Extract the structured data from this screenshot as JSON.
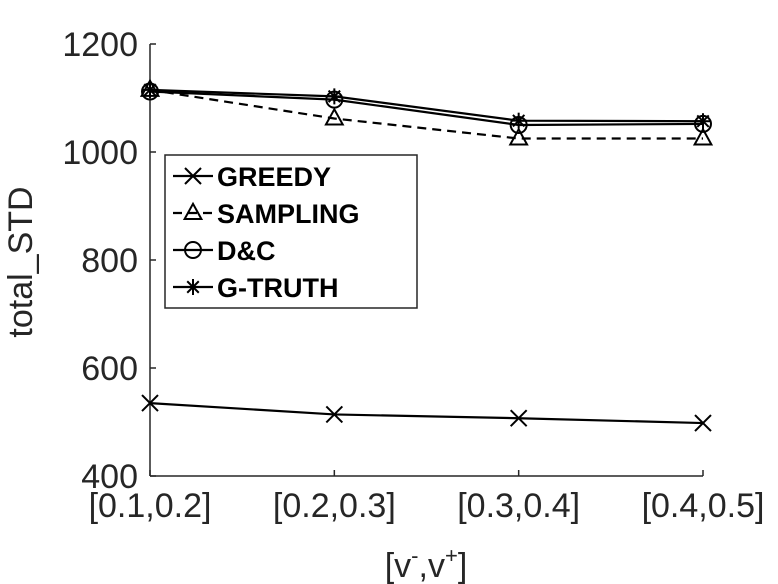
{
  "chart_data": {
    "type": "line",
    "categories": [
      "[0.1,0.2]",
      "[0.2,0.3]",
      "[0.3,0.4]",
      "[0.4,0.5]"
    ],
    "series": [
      {
        "name": "GREEDY",
        "marker": "x",
        "dash": "solid",
        "values": [
          535,
          514,
          507,
          498
        ]
      },
      {
        "name": "SAMPLING",
        "marker": "triangle",
        "dash": "dashed",
        "values": [
          1115,
          1062,
          1025,
          1025
        ]
      },
      {
        "name": "D&C",
        "marker": "circle",
        "dash": "solid",
        "values": [
          1112,
          1097,
          1050,
          1052
        ]
      },
      {
        "name": "G-TRUTH",
        "marker": "asterisk",
        "dash": "solid",
        "values": [
          1115,
          1103,
          1058,
          1057
        ]
      }
    ],
    "ylim": [
      400,
      1200
    ],
    "yticks": [
      400,
      600,
      800,
      1000,
      1200
    ],
    "ylabel": "total_STD",
    "xlabel": "[v-,v+]",
    "xlabel_parts": {
      "base1": "[v",
      "sup1": "-",
      "mid": ",v",
      "sup2": "+",
      "end": "]"
    },
    "legend_position": "upper-left",
    "grid": false,
    "line_color": "#000000"
  }
}
